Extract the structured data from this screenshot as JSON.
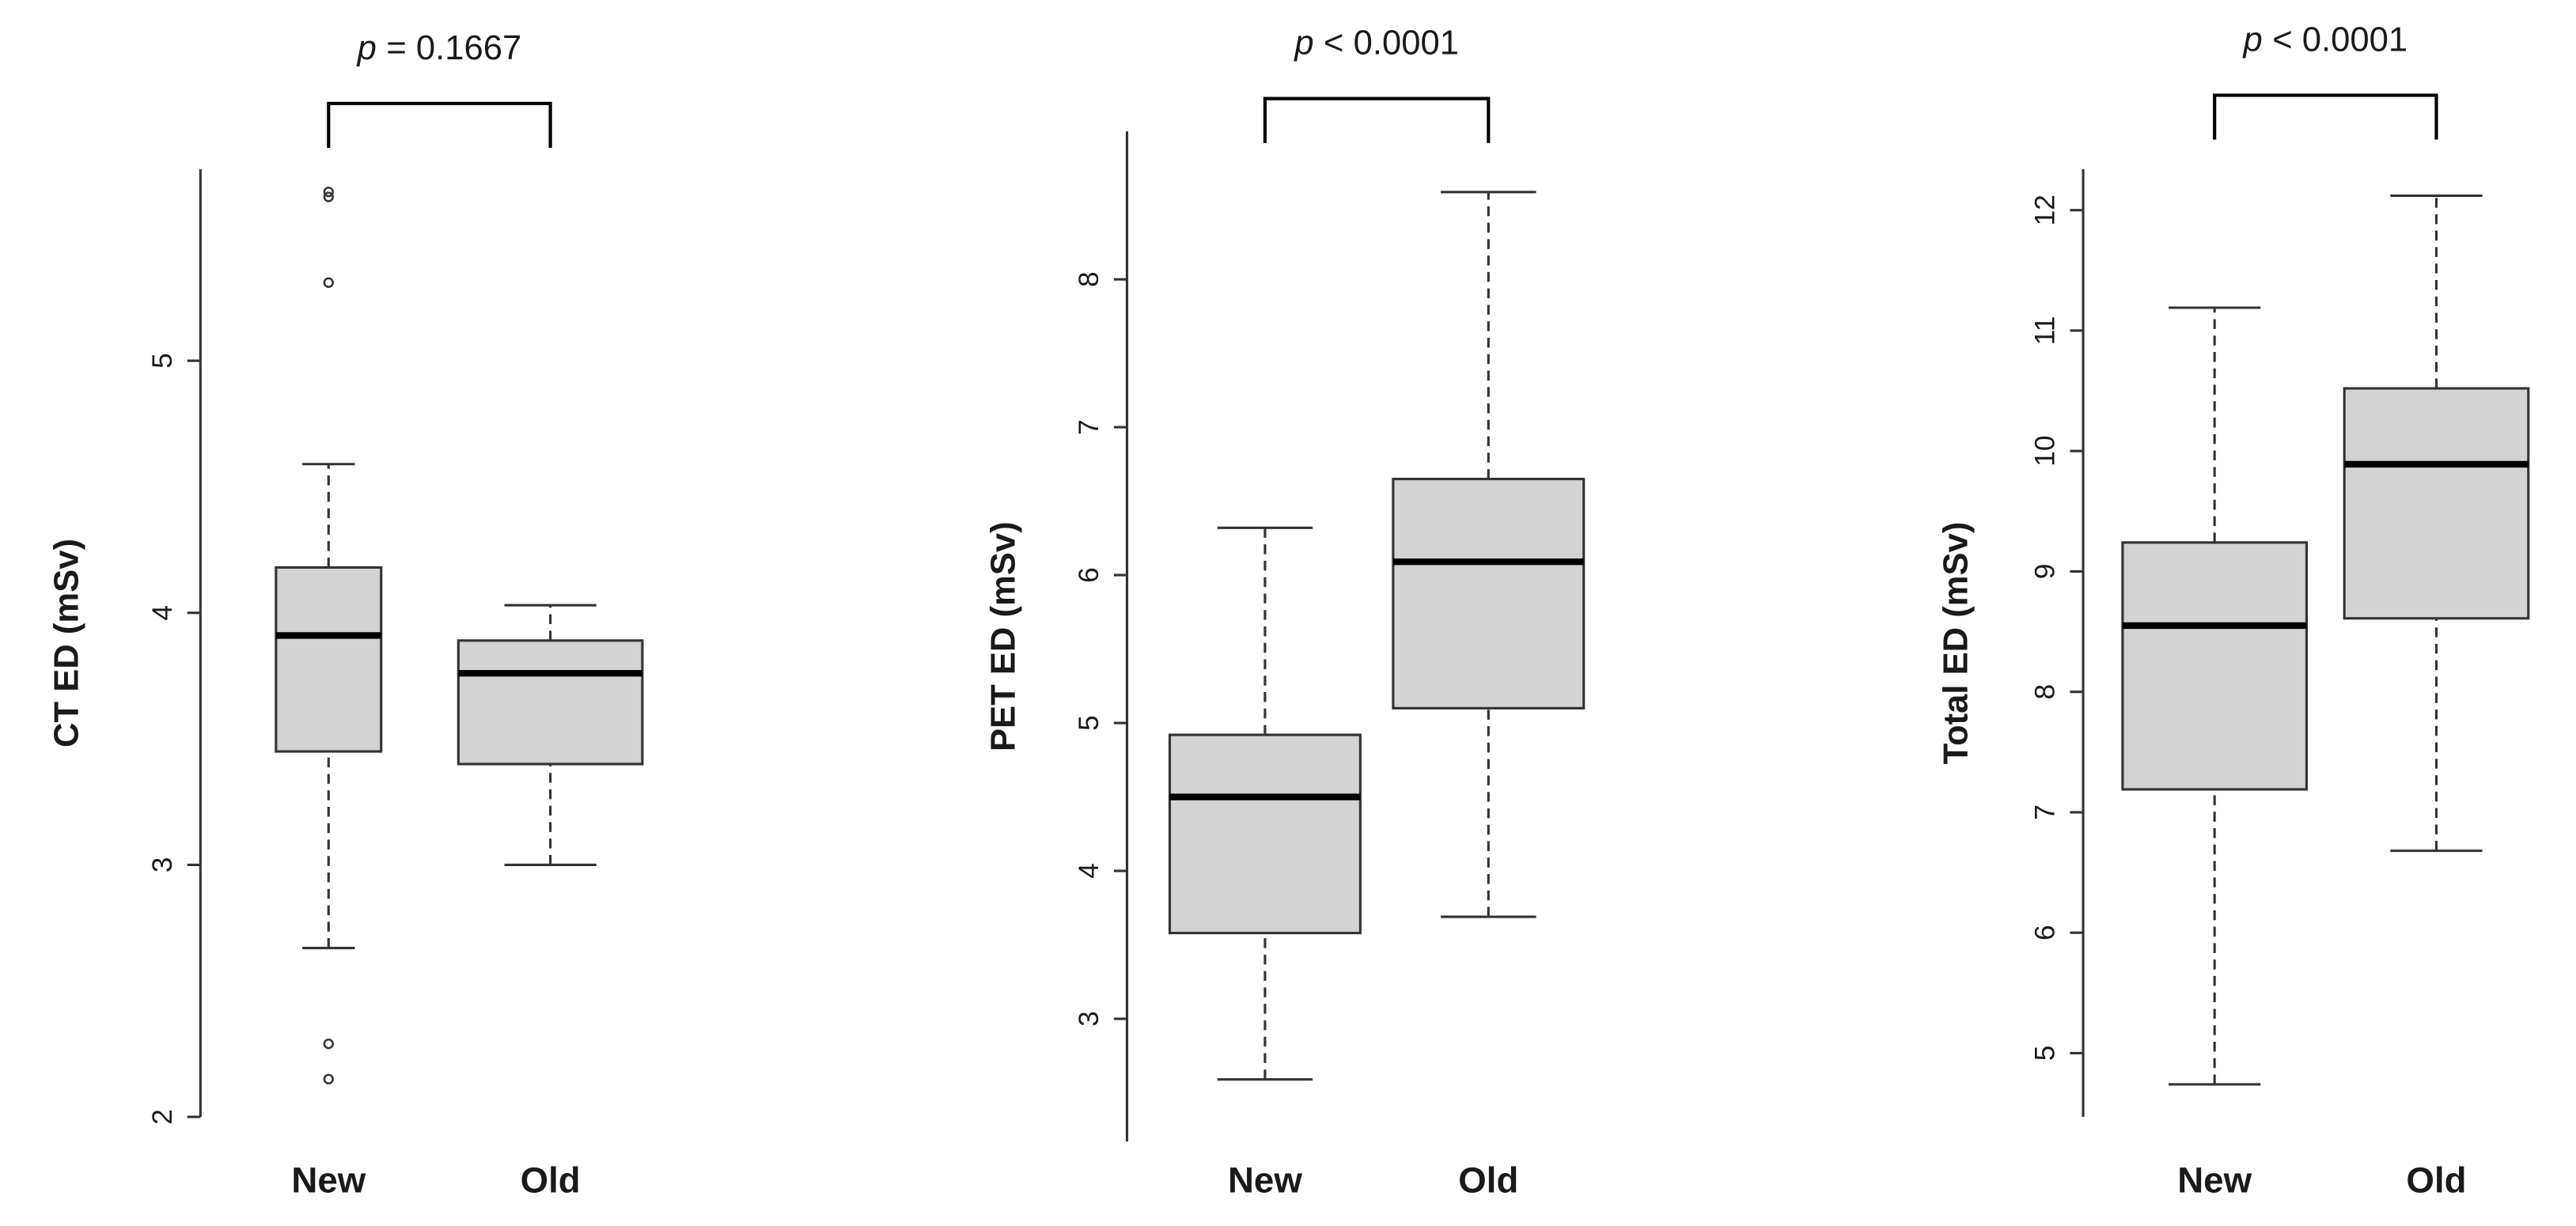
{
  "chart_data": [
    {
      "type": "box",
      "annotation": {
        "symbol": "p",
        "text": "= 0.1667"
      },
      "ylabel": "CT ED (mSv)",
      "categories": [
        "New",
        "Old"
      ],
      "color": "#d3d3d3",
      "boxes": [
        {
          "min": 2.67,
          "q1": 3.45,
          "median": 3.91,
          "q3": 4.18,
          "max": 4.59,
          "outliers": [
            5.67,
            5.65,
            5.31,
            2.29,
            2.15
          ]
        },
        {
          "min": 3.0,
          "q1": 3.4,
          "median": 3.76,
          "q3": 3.89,
          "max": 4.03,
          "outliers": []
        }
      ],
      "ylim": [
        2,
        5.76
      ],
      "yticks": [
        2,
        3,
        4,
        5
      ]
    },
    {
      "type": "box",
      "annotation": {
        "symbol": "p",
        "text": "< 0.0001"
      },
      "ylabel": "PET ED (mSv)",
      "categories": [
        "New",
        "Old"
      ],
      "color": "#d3d3d3",
      "boxes": [
        {
          "min": 2.59,
          "q1": 3.58,
          "median": 4.5,
          "q3": 4.92,
          "max": 6.32,
          "outliers": []
        },
        {
          "min": 3.69,
          "q1": 5.1,
          "median": 6.09,
          "q3": 6.65,
          "max": 8.59,
          "outliers": []
        }
      ],
      "ylim": [
        2.17,
        9.0
      ],
      "yticks": [
        3,
        4,
        5,
        6,
        7,
        8
      ]
    },
    {
      "type": "box",
      "annotation": {
        "symbol": "p",
        "text": "< 0.0001"
      },
      "ylabel": "Total ED (mSv)",
      "categories": [
        "New",
        "Old"
      ],
      "color": "#d3d3d3",
      "boxes": [
        {
          "min": 4.74,
          "q1": 7.19,
          "median": 8.55,
          "q3": 9.24,
          "max": 11.19,
          "outliers": []
        },
        {
          "min": 6.68,
          "q1": 8.61,
          "median": 9.89,
          "q3": 10.52,
          "max": 12.12,
          "outliers": []
        }
      ],
      "ylim": [
        4.47,
        12.34
      ],
      "yticks": [
        5,
        6,
        7,
        8,
        9,
        10,
        11,
        12
      ]
    }
  ]
}
